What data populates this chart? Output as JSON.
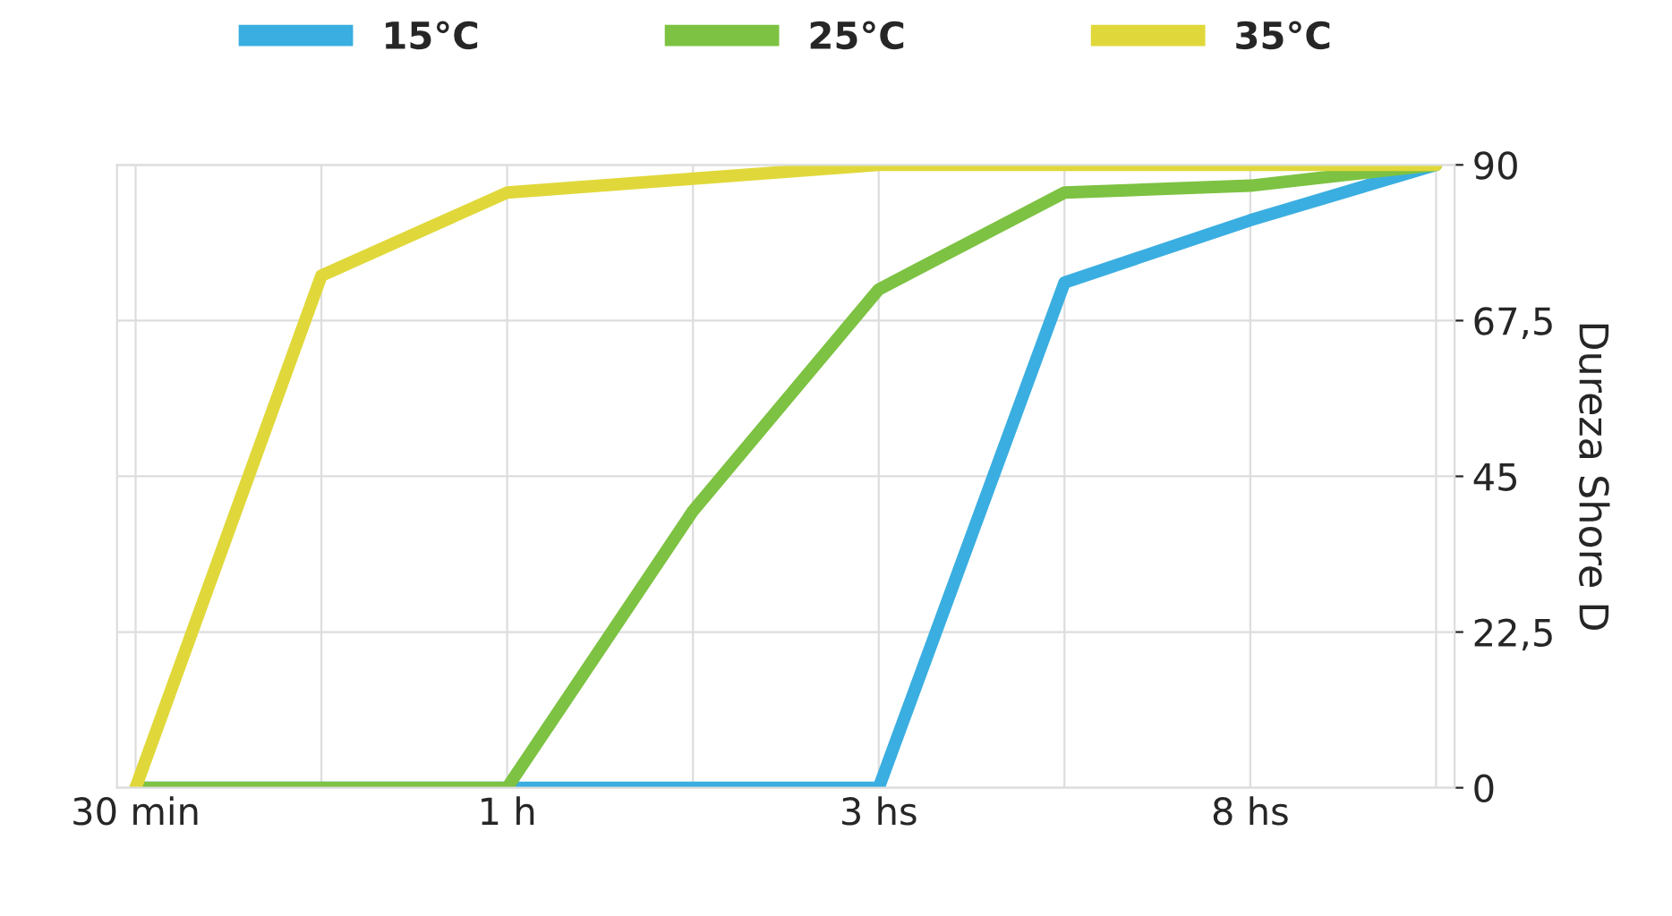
{
  "chart_data": {
    "type": "line",
    "categories": [
      "30 min",
      null,
      "1 h",
      null,
      "3 hs",
      null,
      "8 hs",
      null
    ],
    "series": [
      {
        "name": "15°C",
        "color": "#3aaee0",
        "values": [
          0,
          0,
          0,
          0,
          0,
          73,
          82,
          90
        ]
      },
      {
        "name": "25°C",
        "color": "#7dc242",
        "values": [
          0,
          0,
          0,
          40,
          72,
          86,
          87,
          90
        ]
      },
      {
        "name": "35°C",
        "color": "#e0d83a",
        "values": [
          0,
          74,
          86,
          88,
          90,
          90,
          90,
          90
        ]
      }
    ],
    "ylabel": "Dureza Shore D",
    "ylim": [
      0,
      90
    ],
    "yticks": [
      0,
      {
        "value": 22.5,
        "label": "22,5"
      },
      45,
      {
        "value": 67.5,
        "label": "67,5"
      },
      90
    ],
    "grid": true,
    "legend": "top",
    "marker": "none",
    "line_style": "solid"
  }
}
